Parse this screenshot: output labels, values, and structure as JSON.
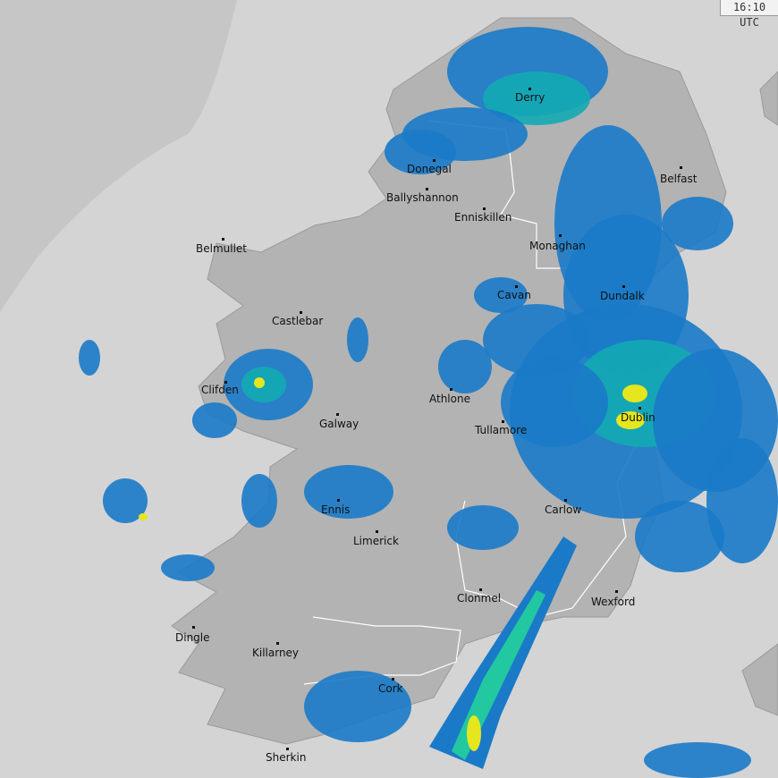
{
  "timestamp": "16:10 UTC",
  "colors": {
    "sea": "#d4d4d4",
    "outer_range": "#c6c6c6",
    "land": "#b3b3b3",
    "border": "#ffffff",
    "rain_light": "#1a7ac8",
    "rain_moderate": "#13aab4",
    "rain_medium": "#22c8a0",
    "rain_heavy": "#e6e61e"
  },
  "cities": [
    {
      "name": "Derry"
    },
    {
      "name": "Donegal"
    },
    {
      "name": "Ballyshannon"
    },
    {
      "name": "Enniskillen"
    },
    {
      "name": "Belfast"
    },
    {
      "name": "Monaghan"
    },
    {
      "name": "Belmullet"
    },
    {
      "name": "Cavan"
    },
    {
      "name": "Dundalk"
    },
    {
      "name": "Castlebar"
    },
    {
      "name": "Clifden"
    },
    {
      "name": "Athlone"
    },
    {
      "name": "Galway"
    },
    {
      "name": "Dublin"
    },
    {
      "name": "Tullamore"
    },
    {
      "name": "Ennis"
    },
    {
      "name": "Carlow"
    },
    {
      "name": "Limerick"
    },
    {
      "name": "Clonmel"
    },
    {
      "name": "Wexford"
    },
    {
      "name": "Dingle"
    },
    {
      "name": "Killarney"
    },
    {
      "name": "Cork"
    },
    {
      "name": "Sherkin"
    }
  ]
}
